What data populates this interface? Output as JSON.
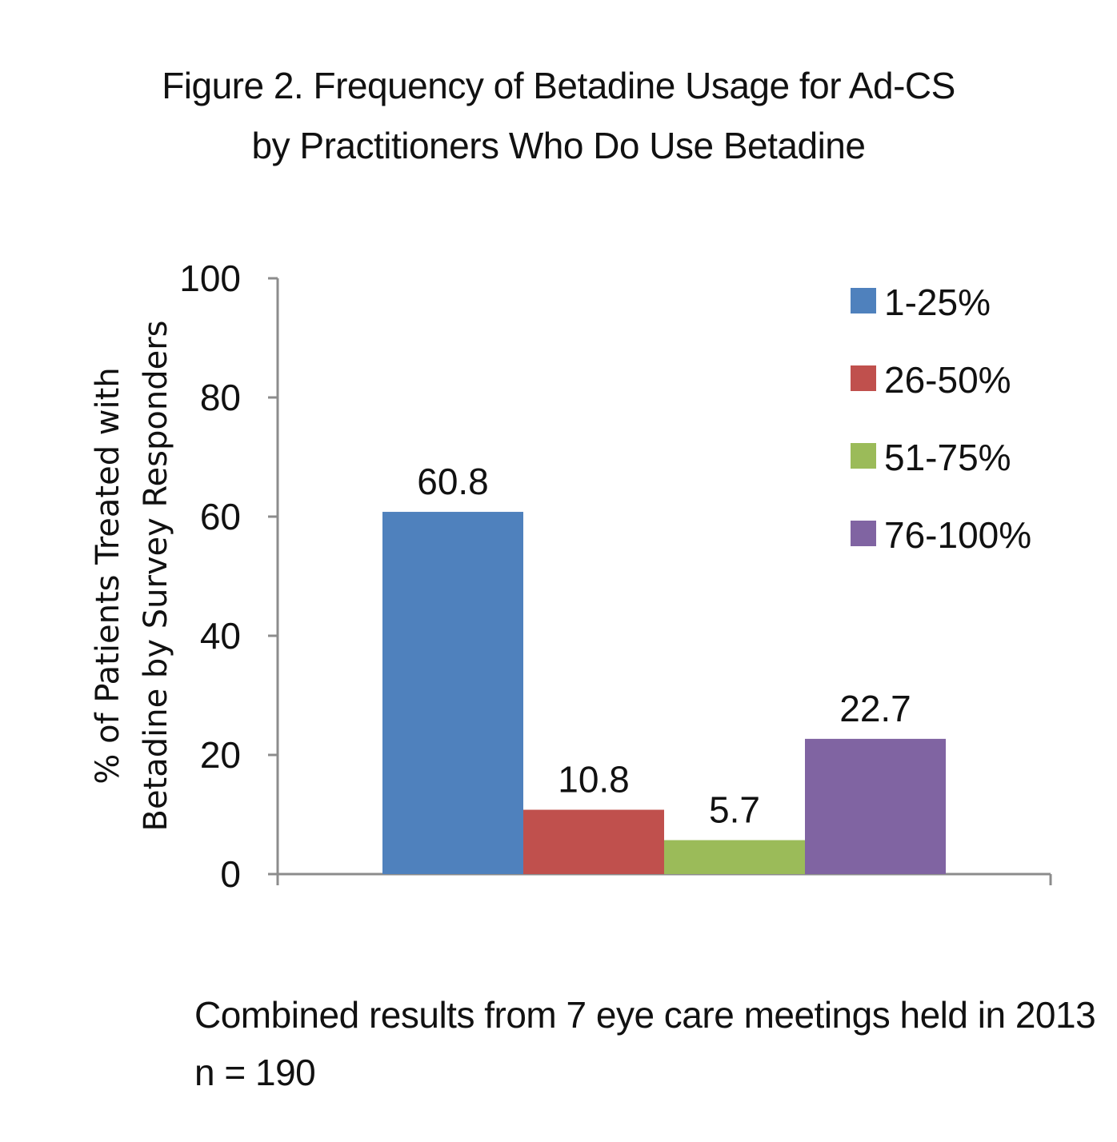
{
  "chart_data": {
    "type": "bar",
    "title": "Figure 2.  Frequency of Betadine Usage for Ad-CS",
    "subtitle": "by Practitioners Who Do  Use Betadine",
    "ylabel_line1": "% of Patients Treated with",
    "ylabel_line2": "Betadine by  Survey Responders",
    "xlabel": "",
    "ylim": [
      0,
      100
    ],
    "yticks": [
      0,
      20,
      40,
      60,
      80,
      100
    ],
    "grid": false,
    "legend_position": "top-right",
    "series": [
      {
        "name": "1-25%",
        "value": 60.8,
        "label": "60.8",
        "color": "#4f81bd"
      },
      {
        "name": "26-50%",
        "value": 10.8,
        "label": "10.8",
        "color": "#c0504d"
      },
      {
        "name": "51-75%",
        "value": 5.7,
        "label": "5.7",
        "color": "#9bbb59"
      },
      {
        "name": "76-100%",
        "value": 22.7,
        "label": "22.7",
        "color": "#8064a2"
      }
    ]
  },
  "caption": {
    "line1": "Combined results from 7 eye care meetings held in 2013",
    "line2": "n = 190"
  }
}
